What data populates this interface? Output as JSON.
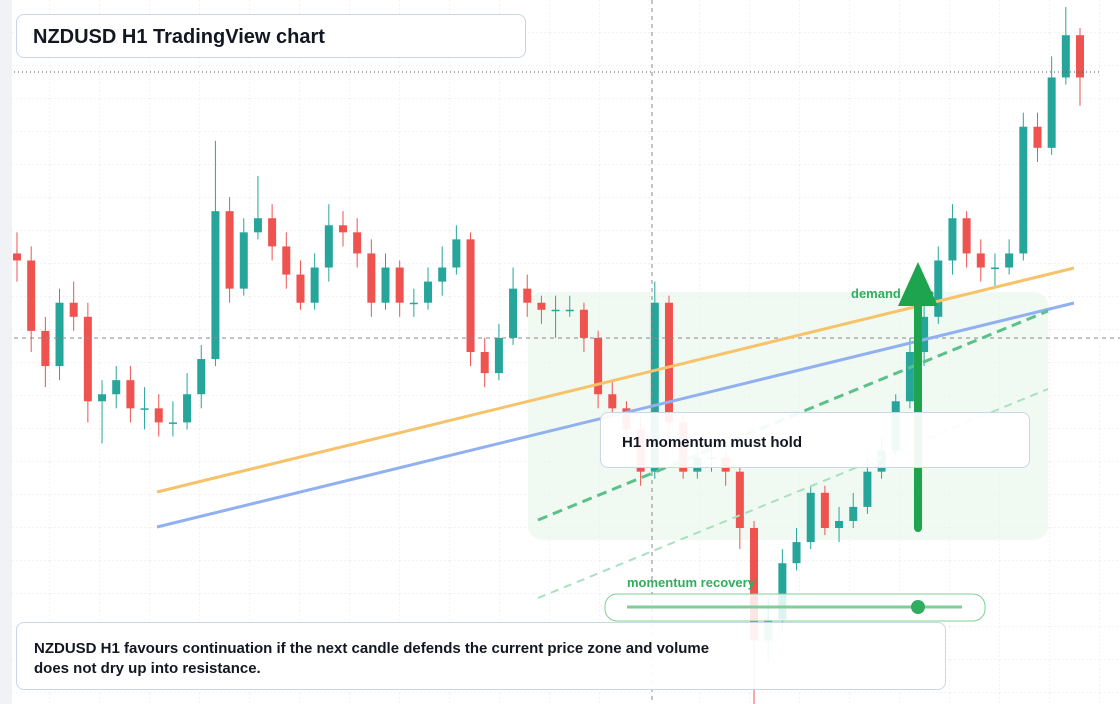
{
  "header": {
    "title": "NZDUSD H1 TradingView chart"
  },
  "chart_data": {
    "type": "candlestick",
    "ylim": [
      0,
      100
    ],
    "up_color": "#26a69a",
    "down_color": "#ef5350",
    "open": [
      64,
      63,
      53,
      48,
      57,
      55,
      43,
      44,
      46,
      42,
      42,
      40,
      40,
      44,
      49,
      70,
      59,
      67,
      69,
      65,
      61,
      57,
      62,
      68,
      67,
      64,
      57,
      62,
      57,
      57,
      60,
      62,
      66,
      50,
      47,
      52,
      59,
      57,
      56,
      56,
      56,
      52,
      44,
      42,
      39,
      33,
      57,
      40,
      33,
      35,
      35,
      33,
      25,
      9,
      12,
      20,
      23,
      30,
      25,
      26,
      28,
      33,
      36,
      43,
      50,
      55,
      63,
      69,
      64,
      62,
      62,
      64,
      82,
      79,
      89,
      95
    ],
    "high": [
      67,
      65,
      55,
      59,
      60,
      57,
      46,
      48,
      48,
      45,
      44,
      43,
      47,
      51,
      80,
      72,
      69,
      75,
      71,
      67,
      63,
      64,
      71,
      70,
      69,
      66,
      64,
      63,
      59,
      62,
      65,
      68,
      67,
      52,
      54,
      62,
      61,
      58,
      58,
      58,
      57,
      53,
      46,
      43,
      41,
      60,
      58,
      41,
      37,
      37,
      36,
      34,
      26,
      15,
      22,
      25,
      31,
      31,
      28,
      30,
      35,
      38,
      44,
      52,
      57,
      65,
      71,
      70,
      66,
      64,
      66,
      84,
      84,
      92,
      99,
      96
    ],
    "low": [
      60,
      50,
      45,
      46,
      53,
      40,
      37,
      42,
      40,
      39,
      38,
      38,
      39,
      42,
      48,
      57,
      58,
      66,
      63,
      59,
      56,
      56,
      60,
      65,
      62,
      55,
      56,
      55,
      55,
      56,
      58,
      61,
      48,
      45,
      46,
      51,
      55,
      54,
      52,
      55,
      50,
      42,
      41,
      37,
      31,
      32,
      38,
      32,
      32,
      33,
      31,
      22,
      0,
      6,
      10,
      19,
      22,
      24,
      23,
      25,
      27,
      32,
      35,
      42,
      48,
      54,
      61,
      62,
      60,
      59,
      61,
      63,
      77,
      78,
      88,
      85
    ],
    "close": [
      63,
      53,
      48,
      57,
      55,
      43,
      44,
      46,
      42,
      42,
      40,
      40,
      44,
      49,
      70,
      59,
      67,
      69,
      65,
      61,
      57,
      62,
      68,
      67,
      64,
      57,
      62,
      57,
      57,
      60,
      62,
      66,
      50,
      47,
      52,
      59,
      57,
      56,
      56,
      56,
      52,
      44,
      42,
      39,
      33,
      57,
      40,
      33,
      35,
      35,
      33,
      25,
      9,
      12,
      20,
      23,
      30,
      25,
      26,
      28,
      33,
      36,
      43,
      50,
      55,
      63,
      69,
      64,
      62,
      62,
      64,
      82,
      79,
      89,
      95,
      89
    ]
  },
  "annotations": {
    "momentum": "H1 momentum must hold",
    "zone": "demand zone",
    "recovery": "momentum recovery"
  },
  "caption": "NZDUSD H1 favours continuation if the next candle defends the current price zone and volume does not dry up into resistance."
}
